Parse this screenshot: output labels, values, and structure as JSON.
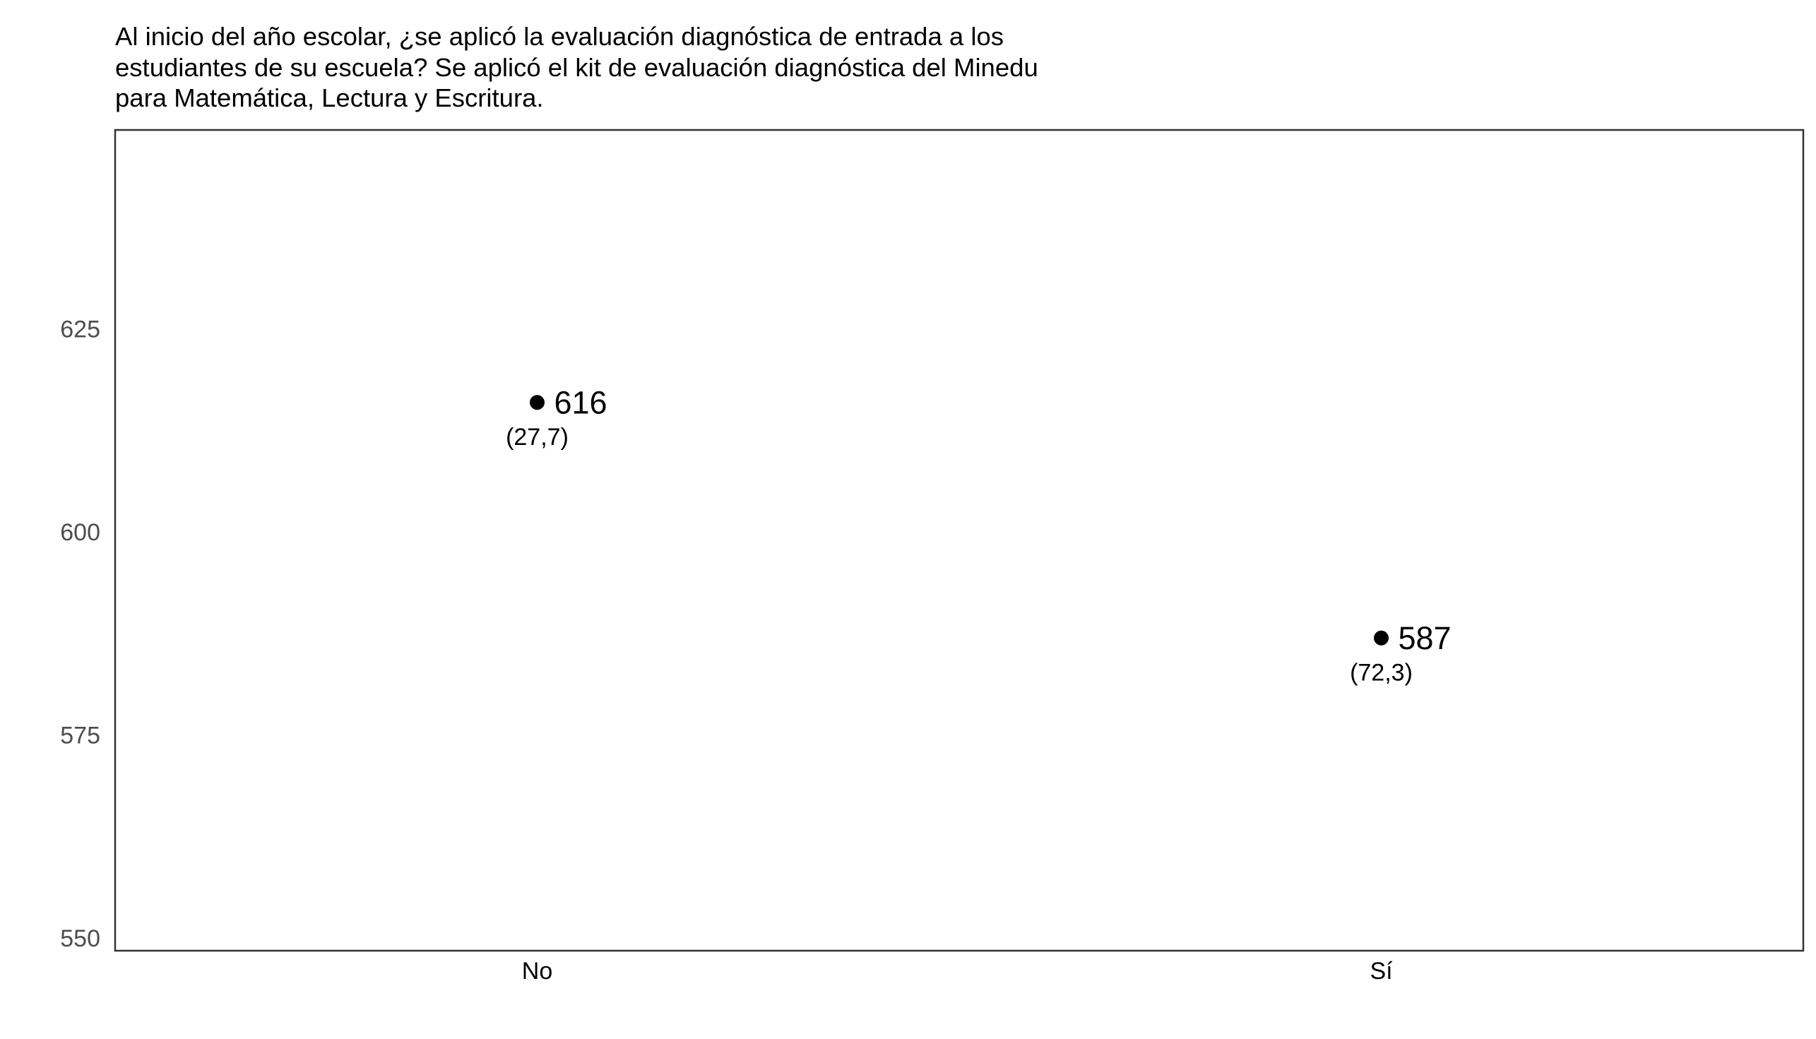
{
  "chart_data": {
    "type": "scatter",
    "title_lines": [
      "Al inicio del año escolar, ¿se aplicó la evaluación diagnóstica de entrada a los",
      "estudiantes de su escuela? Se aplicó el kit de evaluación diagnóstica del Minedu",
      "para Matemática, Lectura y Escritura."
    ],
    "xlabel": "",
    "ylabel": "",
    "categories": [
      "No",
      "Sí"
    ],
    "values": [
      616,
      587
    ],
    "value_labels": [
      "616",
      "587"
    ],
    "sub_labels": [
      "(27,7)",
      "(72,3)"
    ],
    "ylim": [
      548.5,
      650
    ],
    "yticks": [
      550,
      575,
      600,
      625
    ],
    "ytick_labels": [
      "550",
      "575",
      "600",
      "625"
    ],
    "grid": false,
    "legend": "none",
    "colors": {
      "point": "#000000",
      "panel_border": "#333333",
      "tick_text": "#4d4d4d",
      "text": "#000000"
    }
  }
}
